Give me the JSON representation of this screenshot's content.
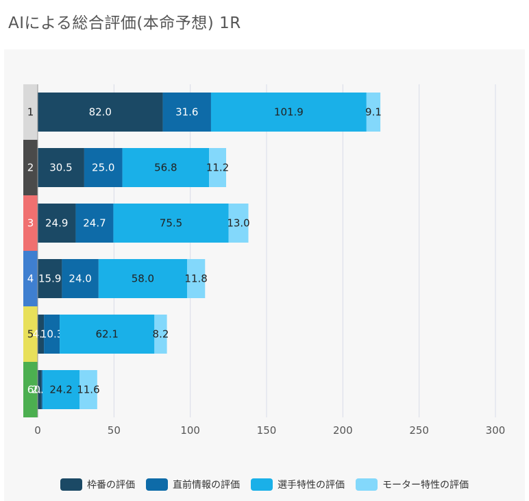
{
  "title": "AIによる総合評価(本命予想) 1R",
  "chart_data": {
    "type": "bar",
    "orientation": "horizontal",
    "stacked": true,
    "title": "AIによる総合評価(本命予想) 1R",
    "categories": [
      "1",
      "2",
      "3",
      "4",
      "5",
      "6"
    ],
    "category_colors": [
      "#d9d9d9",
      "#4a4a4a",
      "#f07070",
      "#3f7fd0",
      "#e8e05a",
      "#4caf50"
    ],
    "category_text_colors": [
      "#222222",
      "#ffffff",
      "#ffffff",
      "#ffffff",
      "#222222",
      "#ffffff"
    ],
    "series": [
      {
        "name": "枠番の評価",
        "color": "#1b4965",
        "values": [
          82.0,
          30.5,
          24.9,
          15.9,
          4.1,
          2.6
        ]
      },
      {
        "name": "直前情報の評価",
        "color": "#0e6ba8",
        "values": [
          31.6,
          25.0,
          24.7,
          24.0,
          10.3,
          0.6
        ]
      },
      {
        "name": "選手特性の評価",
        "color": "#1ab0e8",
        "values": [
          101.9,
          56.8,
          75.5,
          58.0,
          62.1,
          24.2
        ]
      },
      {
        "name": "モーター特性の評価",
        "color": "#83d8fb",
        "values": [
          9.1,
          11.2,
          13.0,
          11.8,
          8.2,
          11.6
        ]
      }
    ],
    "xlim": [
      0,
      300
    ],
    "xticks": [
      0,
      50,
      100,
      150,
      200,
      250,
      300
    ],
    "grid": true,
    "legend_position": "bottom"
  }
}
